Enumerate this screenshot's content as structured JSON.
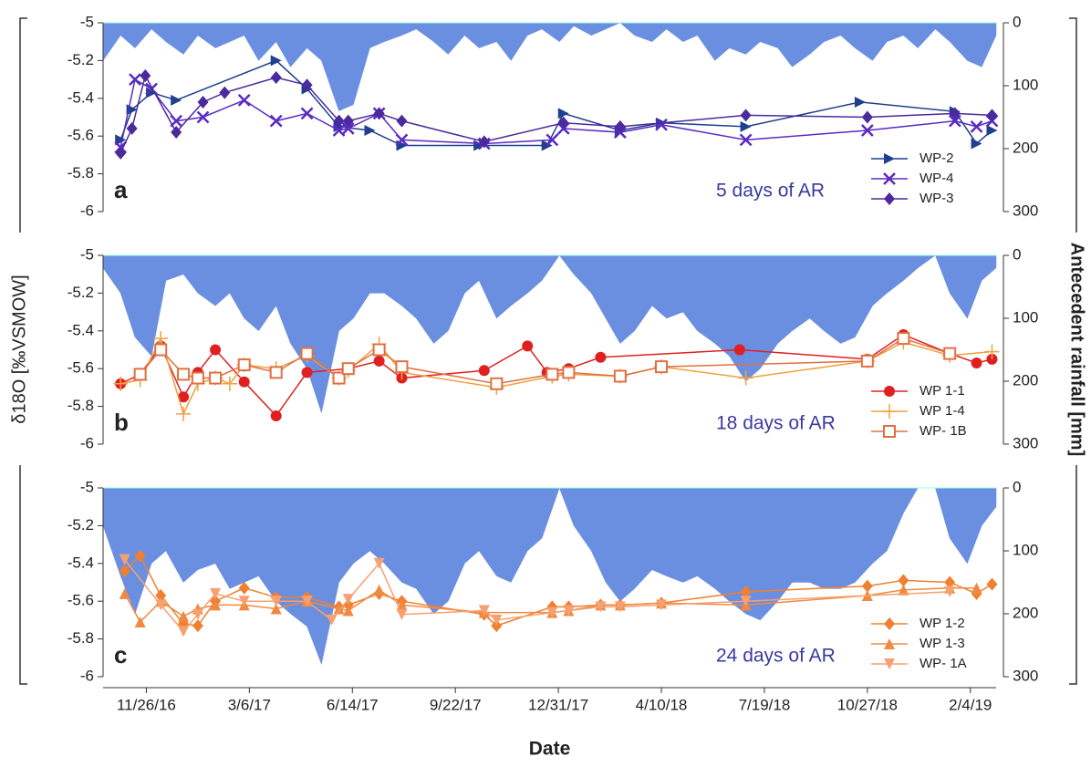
{
  "ylabel": "δ18O [‰VSMOW]",
  "y2label": "Antecedent rainfall [mm]",
  "chart_data": [
    {
      "type": "line",
      "panel_label": "a",
      "annotation": "5 days of AR",
      "xlim": [
        "10/15/16",
        "3/1/19"
      ],
      "ylim": [
        -6,
        -5
      ],
      "yticks": [
        -5,
        -5.2,
        -5.4,
        -5.6,
        -5.8,
        -6
      ],
      "y2lim": [
        0,
        300
      ],
      "y2_inverted": true,
      "y2ticks": [
        0,
        100,
        200,
        300
      ],
      "legend": "lower right",
      "annotation_color": "#3a3aa0",
      "area": {
        "axis": "y2",
        "color": "#6b8fe0",
        "x": [
          "10/15/16",
          "11/1/16",
          "11/15/16",
          "12/1/16",
          "12/15/16",
          "1/1/17",
          "1/15/17",
          "2/1/17",
          "2/15/17",
          "3/1/17",
          "3/15/17",
          "4/1/17",
          "4/15/17",
          "5/1/17",
          "5/15/17",
          "6/1/17",
          "6/15/17",
          "7/1/17",
          "7/15/17",
          "8/1/17",
          "8/15/17",
          "9/1/17",
          "9/15/17",
          "10/1/17",
          "10/15/17",
          "11/1/17",
          "11/15/17",
          "12/1/17",
          "12/15/17",
          "1/1/18",
          "1/15/18",
          "2/1/18",
          "2/15/18",
          "3/1/18",
          "3/15/18",
          "4/1/18",
          "4/15/18",
          "5/1/18",
          "5/15/18",
          "6/1/18",
          "6/15/18",
          "7/1/18",
          "7/15/18",
          "8/1/18",
          "8/15/18",
          "9/1/18",
          "9/15/18",
          "10/1/18",
          "10/15/18",
          "11/1/18",
          "11/15/18",
          "12/1/18",
          "12/15/18",
          "1/1/19",
          "1/15/19",
          "2/1/19",
          "2/15/19",
          "3/1/19"
        ],
        "values": [
          60,
          20,
          40,
          10,
          30,
          50,
          20,
          40,
          30,
          20,
          60,
          30,
          70,
          40,
          60,
          140,
          130,
          40,
          30,
          20,
          10,
          30,
          50,
          20,
          40,
          30,
          60,
          20,
          10,
          30,
          5,
          20,
          10,
          0,
          20,
          30,
          10,
          30,
          20,
          60,
          40,
          50,
          30,
          40,
          70,
          50,
          30,
          20,
          40,
          60,
          30,
          20,
          40,
          10,
          30,
          60,
          70,
          20
        ]
      },
      "series": [
        {
          "name": "WP-2",
          "color": "#1f3f8f",
          "marker": "triangle-right",
          "x": [
            "11/1/16",
            "11/12/16",
            "12/1/16",
            "12/25/16",
            "4/1/17",
            "5/1/17",
            "6/1/17",
            "7/1/17",
            "8/1/17",
            "10/15/17",
            "12/20/17",
            "1/5/18",
            "3/1/18",
            "4/10/18",
            "7/1/18",
            "10/20/18",
            "1/20/19",
            "2/10/19",
            "2/25/19"
          ],
          "values": [
            -5.62,
            -5.46,
            -5.37,
            -5.41,
            -5.2,
            -5.35,
            -5.55,
            -5.57,
            -5.65,
            -5.65,
            -5.65,
            -5.48,
            -5.57,
            -5.53,
            -5.55,
            -5.42,
            -5.47,
            -5.64,
            -5.57
          ]
        },
        {
          "name": "WP-4",
          "color": "#5a2bc2",
          "marker": "x",
          "x": [
            "11/1/16",
            "11/15/16",
            "12/1/16",
            "12/25/16",
            "1/20/17",
            "3/1/17",
            "4/1/17",
            "5/1/17",
            "6/1/17",
            "6/10/17",
            "7/10/17",
            "8/1/17",
            "10/20/17",
            "12/25/17",
            "1/5/18",
            "3/1/18",
            "4/10/18",
            "7/1/18",
            "10/27/18",
            "1/20/19",
            "2/10/19",
            "2/25/19"
          ],
          "values": [
            -5.66,
            -5.3,
            -5.35,
            -5.52,
            -5.5,
            -5.41,
            -5.52,
            -5.48,
            -5.57,
            -5.56,
            -5.48,
            -5.62,
            -5.64,
            -5.62,
            -5.56,
            -5.58,
            -5.54,
            -5.62,
            -5.57,
            -5.52,
            -5.55,
            -5.52
          ]
        },
        {
          "name": "WP-3",
          "color": "#4b2a9e",
          "marker": "diamond",
          "x": [
            "11/1/16",
            "11/12/16",
            "11/25/16",
            "12/25/16",
            "1/20/17",
            "2/10/17",
            "4/1/17",
            "5/1/17",
            "6/1/17",
            "6/10/17",
            "7/10/17",
            "8/1/17",
            "10/20/17",
            "1/5/18",
            "3/1/18",
            "7/1/18",
            "10/27/18",
            "1/20/19",
            "2/25/19"
          ],
          "values": [
            -5.69,
            -5.56,
            -5.28,
            -5.58,
            -5.42,
            -5.37,
            -5.29,
            -5.33,
            -5.52,
            -5.52,
            -5.48,
            -5.52,
            -5.63,
            -5.53,
            -5.55,
            -5.49,
            -5.5,
            -5.48,
            -5.49
          ]
        }
      ]
    },
    {
      "type": "line",
      "panel_label": "b",
      "annotation": "18 days of AR",
      "xlim": [
        "10/15/16",
        "3/1/19"
      ],
      "ylim": [
        -6,
        -5
      ],
      "yticks": [
        -5,
        -5.2,
        -5.4,
        -5.6,
        -5.8,
        -6
      ],
      "y2lim": [
        0,
        300
      ],
      "y2_inverted": true,
      "y2ticks": [
        0,
        100,
        200,
        300
      ],
      "legend": "lower right",
      "annotation_color": "#3a3aa0",
      "area": {
        "axis": "y2",
        "color": "#6b8fe0",
        "x": [
          "10/15/16",
          "11/1/16",
          "11/15/16",
          "12/1/16",
          "12/15/16",
          "1/1/17",
          "1/15/17",
          "2/1/17",
          "2/15/17",
          "3/1/17",
          "3/15/17",
          "4/1/17",
          "4/15/17",
          "5/1/17",
          "5/15/17",
          "6/1/17",
          "6/15/17",
          "7/1/17",
          "7/15/17",
          "8/1/17",
          "8/15/17",
          "9/1/17",
          "9/15/17",
          "10/1/17",
          "10/15/17",
          "11/1/17",
          "11/15/17",
          "12/1/17",
          "12/15/17",
          "1/1/18",
          "1/15/18",
          "2/1/18",
          "2/15/18",
          "3/1/18",
          "3/15/18",
          "4/1/18",
          "4/15/18",
          "5/1/18",
          "5/15/18",
          "6/1/18",
          "6/15/18",
          "7/1/18",
          "7/15/18",
          "8/1/18",
          "8/15/18",
          "9/1/18",
          "9/15/18",
          "10/1/18",
          "10/15/18",
          "11/1/18",
          "11/15/18",
          "12/1/18",
          "12/15/18",
          "1/1/19",
          "1/15/19",
          "2/1/19",
          "2/15/19",
          "3/1/19"
        ],
        "values": [
          20,
          60,
          130,
          160,
          40,
          30,
          60,
          80,
          60,
          100,
          120,
          80,
          140,
          180,
          250,
          120,
          100,
          60,
          60,
          80,
          100,
          140,
          120,
          60,
          40,
          100,
          80,
          60,
          40,
          0,
          30,
          60,
          100,
          140,
          120,
          80,
          100,
          90,
          120,
          140,
          160,
          200,
          180,
          140,
          120,
          100,
          120,
          140,
          130,
          80,
          60,
          40,
          20,
          0,
          60,
          100,
          40,
          20
        ]
      },
      "series": [
        {
          "name": "WP 1-1",
          "color": "#e02020",
          "marker": "circle",
          "x": [
            "11/1/16",
            "11/20/16",
            "12/10/16",
            "1/1/17",
            "1/15/17",
            "2/1/17",
            "3/1/17",
            "4/1/17",
            "5/1/17",
            "6/10/17",
            "7/10/17",
            "8/1/17",
            "10/20/17",
            "12/1/17",
            "12/20/17",
            "1/10/18",
            "2/10/18",
            "6/25/18",
            "10/27/18",
            "12/1/18",
            "1/15/19",
            "2/10/19",
            "2/25/19"
          ],
          "values": [
            -5.68,
            -5.63,
            -5.48,
            -5.75,
            -5.62,
            -5.5,
            -5.67,
            -5.85,
            -5.62,
            -5.6,
            -5.56,
            -5.65,
            -5.61,
            -5.48,
            -5.62,
            -5.6,
            -5.54,
            -5.5,
            -5.55,
            -5.42,
            -5.52,
            -5.57,
            -5.55
          ]
        },
        {
          "name": "WP 1-4",
          "color": "#f0a040",
          "marker": "plus",
          "x": [
            "11/1/16",
            "11/20/16",
            "12/10/16",
            "1/1/17",
            "1/15/17",
            "2/1/17",
            "2/15/17",
            "3/1/17",
            "4/1/17",
            "5/1/17",
            "6/1/17",
            "6/10/17",
            "7/10/17",
            "8/1/17",
            "11/1/17",
            "12/25/17",
            "1/10/18",
            "3/1/18",
            "4/10/18",
            "7/1/18",
            "10/27/18",
            "12/1/18",
            "1/15/19",
            "2/25/19"
          ],
          "values": [
            -5.68,
            -5.66,
            -5.44,
            -5.84,
            -5.68,
            -5.65,
            -5.68,
            -5.58,
            -5.6,
            -5.53,
            -5.65,
            -5.61,
            -5.47,
            -5.62,
            -5.7,
            -5.64,
            -5.63,
            -5.64,
            -5.59,
            -5.65,
            -5.56,
            -5.46,
            -5.53,
            -5.51
          ]
        },
        {
          "name": "WP- 1B",
          "color": "#e07040",
          "marker": "square-open",
          "x": [
            "11/20/16",
            "12/10/16",
            "1/1/17",
            "1/15/17",
            "2/1/17",
            "3/1/17",
            "4/1/17",
            "5/1/17",
            "6/1/17",
            "6/10/17",
            "7/10/17",
            "8/1/17",
            "11/1/17",
            "12/25/17",
            "1/10/18",
            "3/1/18",
            "4/10/18",
            "10/27/18",
            "12/1/18",
            "1/15/19"
          ],
          "values": [
            -5.63,
            -5.5,
            -5.63,
            -5.65,
            -5.65,
            -5.58,
            -5.62,
            -5.52,
            -5.65,
            -5.6,
            -5.5,
            -5.59,
            -5.68,
            -5.63,
            -5.62,
            -5.64,
            -5.59,
            -5.56,
            -5.44,
            -5.52
          ]
        }
      ]
    },
    {
      "type": "line",
      "panel_label": "c",
      "annotation": "24 days of AR",
      "xlim": [
        "10/15/16",
        "3/1/19"
      ],
      "xticks": [
        "11/26/16",
        "3/6/17",
        "6/14/17",
        "9/22/17",
        "12/31/17",
        "4/10/18",
        "7/19/18",
        "10/27/18",
        "2/4/19"
      ],
      "xlabel": "Date",
      "ylim": [
        -6,
        -5
      ],
      "yticks": [
        -5,
        -5.2,
        -5.4,
        -5.6,
        -5.8,
        -6
      ],
      "y2lim": [
        0,
        300
      ],
      "y2_inverted": true,
      "y2ticks": [
        0,
        100,
        200,
        300
      ],
      "legend": "lower right",
      "annotation_color": "#3a3aa0",
      "area": {
        "axis": "y2",
        "color": "#6b8fe0",
        "x": [
          "10/15/16",
          "11/1/16",
          "11/15/16",
          "12/1/16",
          "12/15/16",
          "1/1/17",
          "1/15/17",
          "2/1/17",
          "2/15/17",
          "3/1/17",
          "3/15/17",
          "4/1/17",
          "4/15/17",
          "5/1/17",
          "5/15/17",
          "6/1/17",
          "6/15/17",
          "7/1/17",
          "7/15/17",
          "8/1/17",
          "8/15/17",
          "9/1/17",
          "9/15/17",
          "10/1/17",
          "10/15/17",
          "11/1/17",
          "11/15/17",
          "12/1/17",
          "12/15/17",
          "1/1/18",
          "1/15/18",
          "2/1/18",
          "2/15/18",
          "3/1/18",
          "3/15/18",
          "4/1/18",
          "4/15/18",
          "5/1/18",
          "5/15/18",
          "6/1/18",
          "6/15/18",
          "7/1/18",
          "7/15/18",
          "8/1/18",
          "8/15/18",
          "9/1/18",
          "9/15/18",
          "10/1/18",
          "10/15/18",
          "11/1/18",
          "11/15/18",
          "12/1/18",
          "12/15/18",
          "1/1/19",
          "1/15/19",
          "2/1/19",
          "2/15/19",
          "3/1/19"
        ],
        "values": [
          60,
          140,
          200,
          120,
          100,
          150,
          130,
          120,
          160,
          150,
          140,
          180,
          200,
          220,
          280,
          150,
          120,
          100,
          120,
          150,
          160,
          200,
          180,
          120,
          100,
          140,
          150,
          100,
          80,
          0,
          60,
          100,
          150,
          180,
          160,
          130,
          140,
          150,
          140,
          160,
          180,
          200,
          210,
          180,
          150,
          150,
          160,
          160,
          150,
          120,
          100,
          40,
          0,
          0,
          80,
          120,
          60,
          30
        ]
      },
      "series": [
        {
          "name": "WP 1-2",
          "color": "#f08030",
          "marker": "diamond",
          "x": [
            "11/5/16",
            "11/20/16",
            "12/10/16",
            "1/1/17",
            "1/15/17",
            "2/1/17",
            "3/1/17",
            "4/1/17",
            "5/1/17",
            "6/1/17",
            "6/10/17",
            "7/10/17",
            "8/1/17",
            "10/20/17",
            "11/1/17",
            "12/25/17",
            "1/10/18",
            "2/10/18",
            "3/1/18",
            "4/10/18",
            "7/1/18",
            "10/27/18",
            "12/1/18",
            "1/15/19",
            "2/10/19",
            "2/25/19"
          ],
          "values": [
            -5.44,
            -5.36,
            -5.57,
            -5.72,
            -5.73,
            -5.6,
            -5.53,
            -5.58,
            -5.58,
            -5.63,
            -5.62,
            -5.56,
            -5.6,
            -5.67,
            -5.73,
            -5.63,
            -5.63,
            -5.62,
            -5.62,
            -5.61,
            -5.55,
            -5.52,
            -5.49,
            -5.5,
            -5.56,
            -5.51
          ]
        },
        {
          "name": "WP 1-3",
          "color": "#f08a40",
          "marker": "triangle-up",
          "x": [
            "11/5/16",
            "11/20/16",
            "12/10/16",
            "1/1/17",
            "1/15/17",
            "2/1/17",
            "3/1/17",
            "4/1/17",
            "5/1/17",
            "6/1/17",
            "6/10/17",
            "7/10/17",
            "8/1/17",
            "10/20/17",
            "12/25/17",
            "1/10/18",
            "2/10/18",
            "3/1/18",
            "4/10/18",
            "7/1/18",
            "10/27/18",
            "12/1/18",
            "1/15/19",
            "2/10/19"
          ],
          "values": [
            -5.56,
            -5.71,
            -5.6,
            -5.68,
            -5.64,
            -5.62,
            -5.62,
            -5.64,
            -5.6,
            -5.64,
            -5.65,
            -5.54,
            -5.62,
            -5.66,
            -5.66,
            -5.65,
            -5.62,
            -5.62,
            -5.61,
            -5.62,
            -5.57,
            -5.54,
            -5.53,
            -5.53
          ]
        },
        {
          "name": "WP- 1A",
          "color": "#f7a070",
          "marker": "triangle-down",
          "x": [
            "11/5/16",
            "12/10/16",
            "1/1/17",
            "1/15/17",
            "2/1/17",
            "3/1/17",
            "4/1/17",
            "5/1/17",
            "5/25/17",
            "6/10/17",
            "7/10/17",
            "8/1/17",
            "10/20/17",
            "11/1/17",
            "12/25/17",
            "1/10/18",
            "2/10/18",
            "3/1/18",
            "4/10/18",
            "7/1/18",
            "1/15/19"
          ],
          "values": [
            -5.38,
            -5.62,
            -5.76,
            -5.67,
            -5.56,
            -5.6,
            -5.6,
            -5.6,
            -5.7,
            -5.59,
            -5.4,
            -5.67,
            -5.65,
            -5.7,
            -5.66,
            -5.65,
            -5.63,
            -5.63,
            -5.62,
            -5.6,
            -5.55
          ]
        }
      ]
    }
  ]
}
